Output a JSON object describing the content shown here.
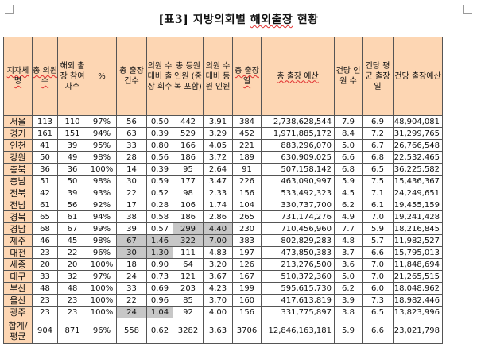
{
  "title": {
    "prefix": "[표3] 지방의회별 ",
    "marked": "해외출장",
    "suffix": " 현황"
  },
  "columns": [
    "지자체명",
    "총 의원 수",
    "해외 출장 참여 자수",
    "%",
    "총 출장 건수",
    "의원 수 대비 출장 회수",
    "총 등원 인원 (중복 포함)",
    "의원 수 대비 등원 인원",
    "총 출장 일",
    "총 출장 예산",
    "건당 인원 수",
    "건당 평균 출장 일",
    "건당 출장예산"
  ],
  "rows": [
    [
      "서울",
      "113",
      "110",
      "97%",
      "56",
      "0.50",
      "442",
      "3.91",
      "384",
      "2,738,628,544",
      "7.9",
      "6.9",
      "48,904,081"
    ],
    [
      "경기",
      "161",
      "151",
      "94%",
      "63",
      "0.39",
      "529",
      "3.29",
      "452",
      "1,971,885,172",
      "8.4",
      "7.2",
      "31,299,765"
    ],
    [
      "인천",
      "41",
      "39",
      "95%",
      "33",
      "0.80",
      "166",
      "4.05",
      "221",
      "883,296,070",
      "5.0",
      "6.7",
      "26,766,548"
    ],
    [
      "강원",
      "50",
      "49",
      "98%",
      "28",
      "0.56",
      "186",
      "3.72",
      "189",
      "630,909,025",
      "6.6",
      "6.8",
      "22,532,465"
    ],
    [
      "충북",
      "36",
      "36",
      "100%",
      "14",
      "0.39",
      "95",
      "2.64",
      "91",
      "507,158,142",
      "6.8",
      "6.5",
      "36,225,582"
    ],
    [
      "충남",
      "51",
      "50",
      "98%",
      "30",
      "0.59",
      "177",
      "3.47",
      "226",
      "463,090,997",
      "5.9",
      "7.5",
      "15,436,367"
    ],
    [
      "전북",
      "42",
      "39",
      "93%",
      "22",
      "0.52",
      "98",
      "2.33",
      "156",
      "533,492,323",
      "4.5",
      "7.1",
      "24,249,651"
    ],
    [
      "전남",
      "61",
      "56",
      "92%",
      "17",
      "0.28",
      "106",
      "1.74",
      "104",
      "330,737,700",
      "6.2",
      "6.1",
      "19,455,159"
    ],
    [
      "경북",
      "65",
      "61",
      "94%",
      "38",
      "0.58",
      "186",
      "2.86",
      "265",
      "731,174,276",
      "4.9",
      "7.0",
      "19,241,428"
    ],
    [
      "경남",
      "68",
      "67",
      "99%",
      "39",
      "0.57",
      "299",
      "4.40",
      "230",
      "710,456,960",
      "7.7",
      "5.9",
      "18,216,845"
    ],
    [
      "제주",
      "46",
      "45",
      "98%",
      "67",
      "1.46",
      "322",
      "7.00",
      "383",
      "802,829,283",
      "4.8",
      "5.7",
      "11,982,527"
    ],
    [
      "대전",
      "23",
      "22",
      "96%",
      "30",
      "1.30",
      "111",
      "4.83",
      "197",
      "473,850,383",
      "3.7",
      "6.6",
      "15,795,013"
    ],
    [
      "세종",
      "20",
      "20",
      "100%",
      "18",
      "0.90",
      "64",
      "3.20",
      "126",
      "213,276,500",
      "3.6",
      "7.0",
      "11,848,694"
    ],
    [
      "대구",
      "33",
      "32",
      "97%",
      "24",
      "0.73",
      "121",
      "3.67",
      "167",
      "510,372,360",
      "5.0",
      "7.0",
      "21,265,515"
    ],
    [
      "부산",
      "48",
      "48",
      "100%",
      "33",
      "0.69",
      "203",
      "4.23",
      "199",
      "595,615,730",
      "6.2",
      "6.0",
      "18,048,962"
    ],
    [
      "울산",
      "23",
      "23",
      "100%",
      "22",
      "0.96",
      "85",
      "3.70",
      "160",
      "417,613,819",
      "3.9",
      "7.3",
      "18,982,446"
    ],
    [
      "광주",
      "23",
      "23",
      "100%",
      "24",
      "1.04",
      "92",
      "4.00",
      "156",
      "331,775,897",
      "3.8",
      "6.5",
      "13,823,996"
    ]
  ],
  "total": [
    "합계/ 평균",
    "904",
    "871",
    "96%",
    "558",
    "0.62",
    "3282",
    "3.63",
    "3706",
    "12,846,163,181",
    "5.9",
    "6.6",
    "23,021,798"
  ],
  "shaded_cells": {
    "경남": [
      6,
      7
    ],
    "제주": [
      4,
      5,
      6,
      7
    ],
    "대전": [
      4,
      5
    ],
    "광주": [
      4,
      5
    ]
  },
  "colors": {
    "header_bg": "#fdd6b3",
    "region_bg": "#fdd6b3",
    "shaded_bg": "#c7c7c7",
    "spellcheck_underline": "#e03030"
  }
}
